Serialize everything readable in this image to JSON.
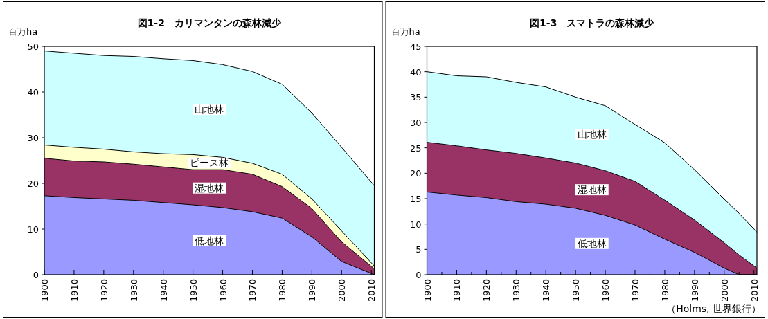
{
  "chart_data": [
    {
      "type": "area",
      "stacked": true,
      "title": "図1-2　カリマンタンの森林減少",
      "ylabel": "百万ha",
      "legend": false,
      "grid": false,
      "x": [
        1900,
        1910,
        1920,
        1930,
        1940,
        1950,
        1960,
        1970,
        1980,
        1990,
        2000,
        2011
      ],
      "xlim": [
        1900,
        2011
      ],
      "xticks": [
        1900,
        1910,
        1920,
        1930,
        1940,
        1950,
        1960,
        1970,
        1980,
        1990,
        2000,
        2010
      ],
      "ylim": [
        0,
        50
      ],
      "yticks": [
        0,
        10,
        20,
        30,
        40,
        50
      ],
      "series": [
        {
          "name": "低地林",
          "color": "#9999ff",
          "values": [
            17.3,
            16.9,
            16.6,
            16.3,
            15.8,
            15.3,
            14.7,
            13.8,
            12.4,
            8.3,
            2.9,
            0
          ]
        },
        {
          "name": "湿地林",
          "color": "#993366",
          "values": [
            8.2,
            8.0,
            8.1,
            7.9,
            7.8,
            7.7,
            8.3,
            8.2,
            6.9,
            6.2,
            4.3,
            1.3
          ]
        },
        {
          "name": "ピース林",
          "color": "#ffffcc",
          "values": [
            2.9,
            3.0,
            2.8,
            2.7,
            2.9,
            3.3,
            2.7,
            2.4,
            2.7,
            2.1,
            2.4,
            0.6
          ]
        },
        {
          "name": "山地林",
          "color": "#ccffff",
          "values": [
            20.6,
            20.6,
            20.5,
            20.9,
            20.8,
            20.6,
            20.3,
            20.1,
            19.7,
            18.8,
            18.3,
            17.6
          ]
        }
      ]
    },
    {
      "type": "area",
      "stacked": true,
      "title": "図1-3　スマトラの森林減少",
      "ylabel": "百万ha",
      "legend": false,
      "grid": false,
      "x": [
        1900,
        1910,
        1920,
        1930,
        1940,
        1950,
        1960,
        1970,
        1980,
        1990,
        2000,
        2005,
        2011
      ],
      "xlim": [
        1900,
        2011
      ],
      "xticks": [
        1900,
        {
          "value": 1905,
          "label": null
        },
        1910,
        {
          "value": 1915,
          "label": null
        },
        1920,
        {
          "value": 1925,
          "label": null
        },
        1930,
        {
          "value": 1935,
          "label": null
        },
        1940,
        {
          "value": 1945,
          "label": null
        },
        1950,
        {
          "value": 1955,
          "label": null
        },
        1960,
        {
          "value": 1965,
          "label": null
        },
        1970,
        {
          "value": 1975,
          "label": null
        },
        1980,
        {
          "value": 1985,
          "label": null
        },
        1990,
        {
          "value": 1995,
          "label": null
        },
        2000,
        {
          "value": 2005,
          "label": null
        },
        2010
      ],
      "ylim": [
        0,
        45
      ],
      "yticks": [
        0,
        5,
        10,
        15,
        20,
        25,
        30,
        35,
        40,
        45
      ],
      "annotations": [
        "（Holms, 世界銀行）"
      ],
      "series": [
        {
          "name": "低地林",
          "color": "#9999ff",
          "values": [
            16.3,
            15.7,
            15.2,
            14.4,
            13.9,
            13.1,
            11.7,
            9.8,
            7.0,
            4.4,
            1.3,
            0,
            0
          ]
        },
        {
          "name": "湿地林",
          "color": "#993366",
          "values": [
            9.8,
            9.7,
            9.4,
            9.5,
            9.1,
            8.9,
            8.8,
            8.6,
            7.7,
            6.4,
            5.0,
            3.9,
            1.3
          ]
        },
        {
          "name": "山地林",
          "color": "#ccffff",
          "values": [
            13.9,
            13.8,
            14.4,
            14.0,
            14.0,
            13.0,
            12.8,
            11.2,
            11.3,
            9.9,
            8.6,
            8.2,
            7.1
          ]
        }
      ]
    }
  ]
}
